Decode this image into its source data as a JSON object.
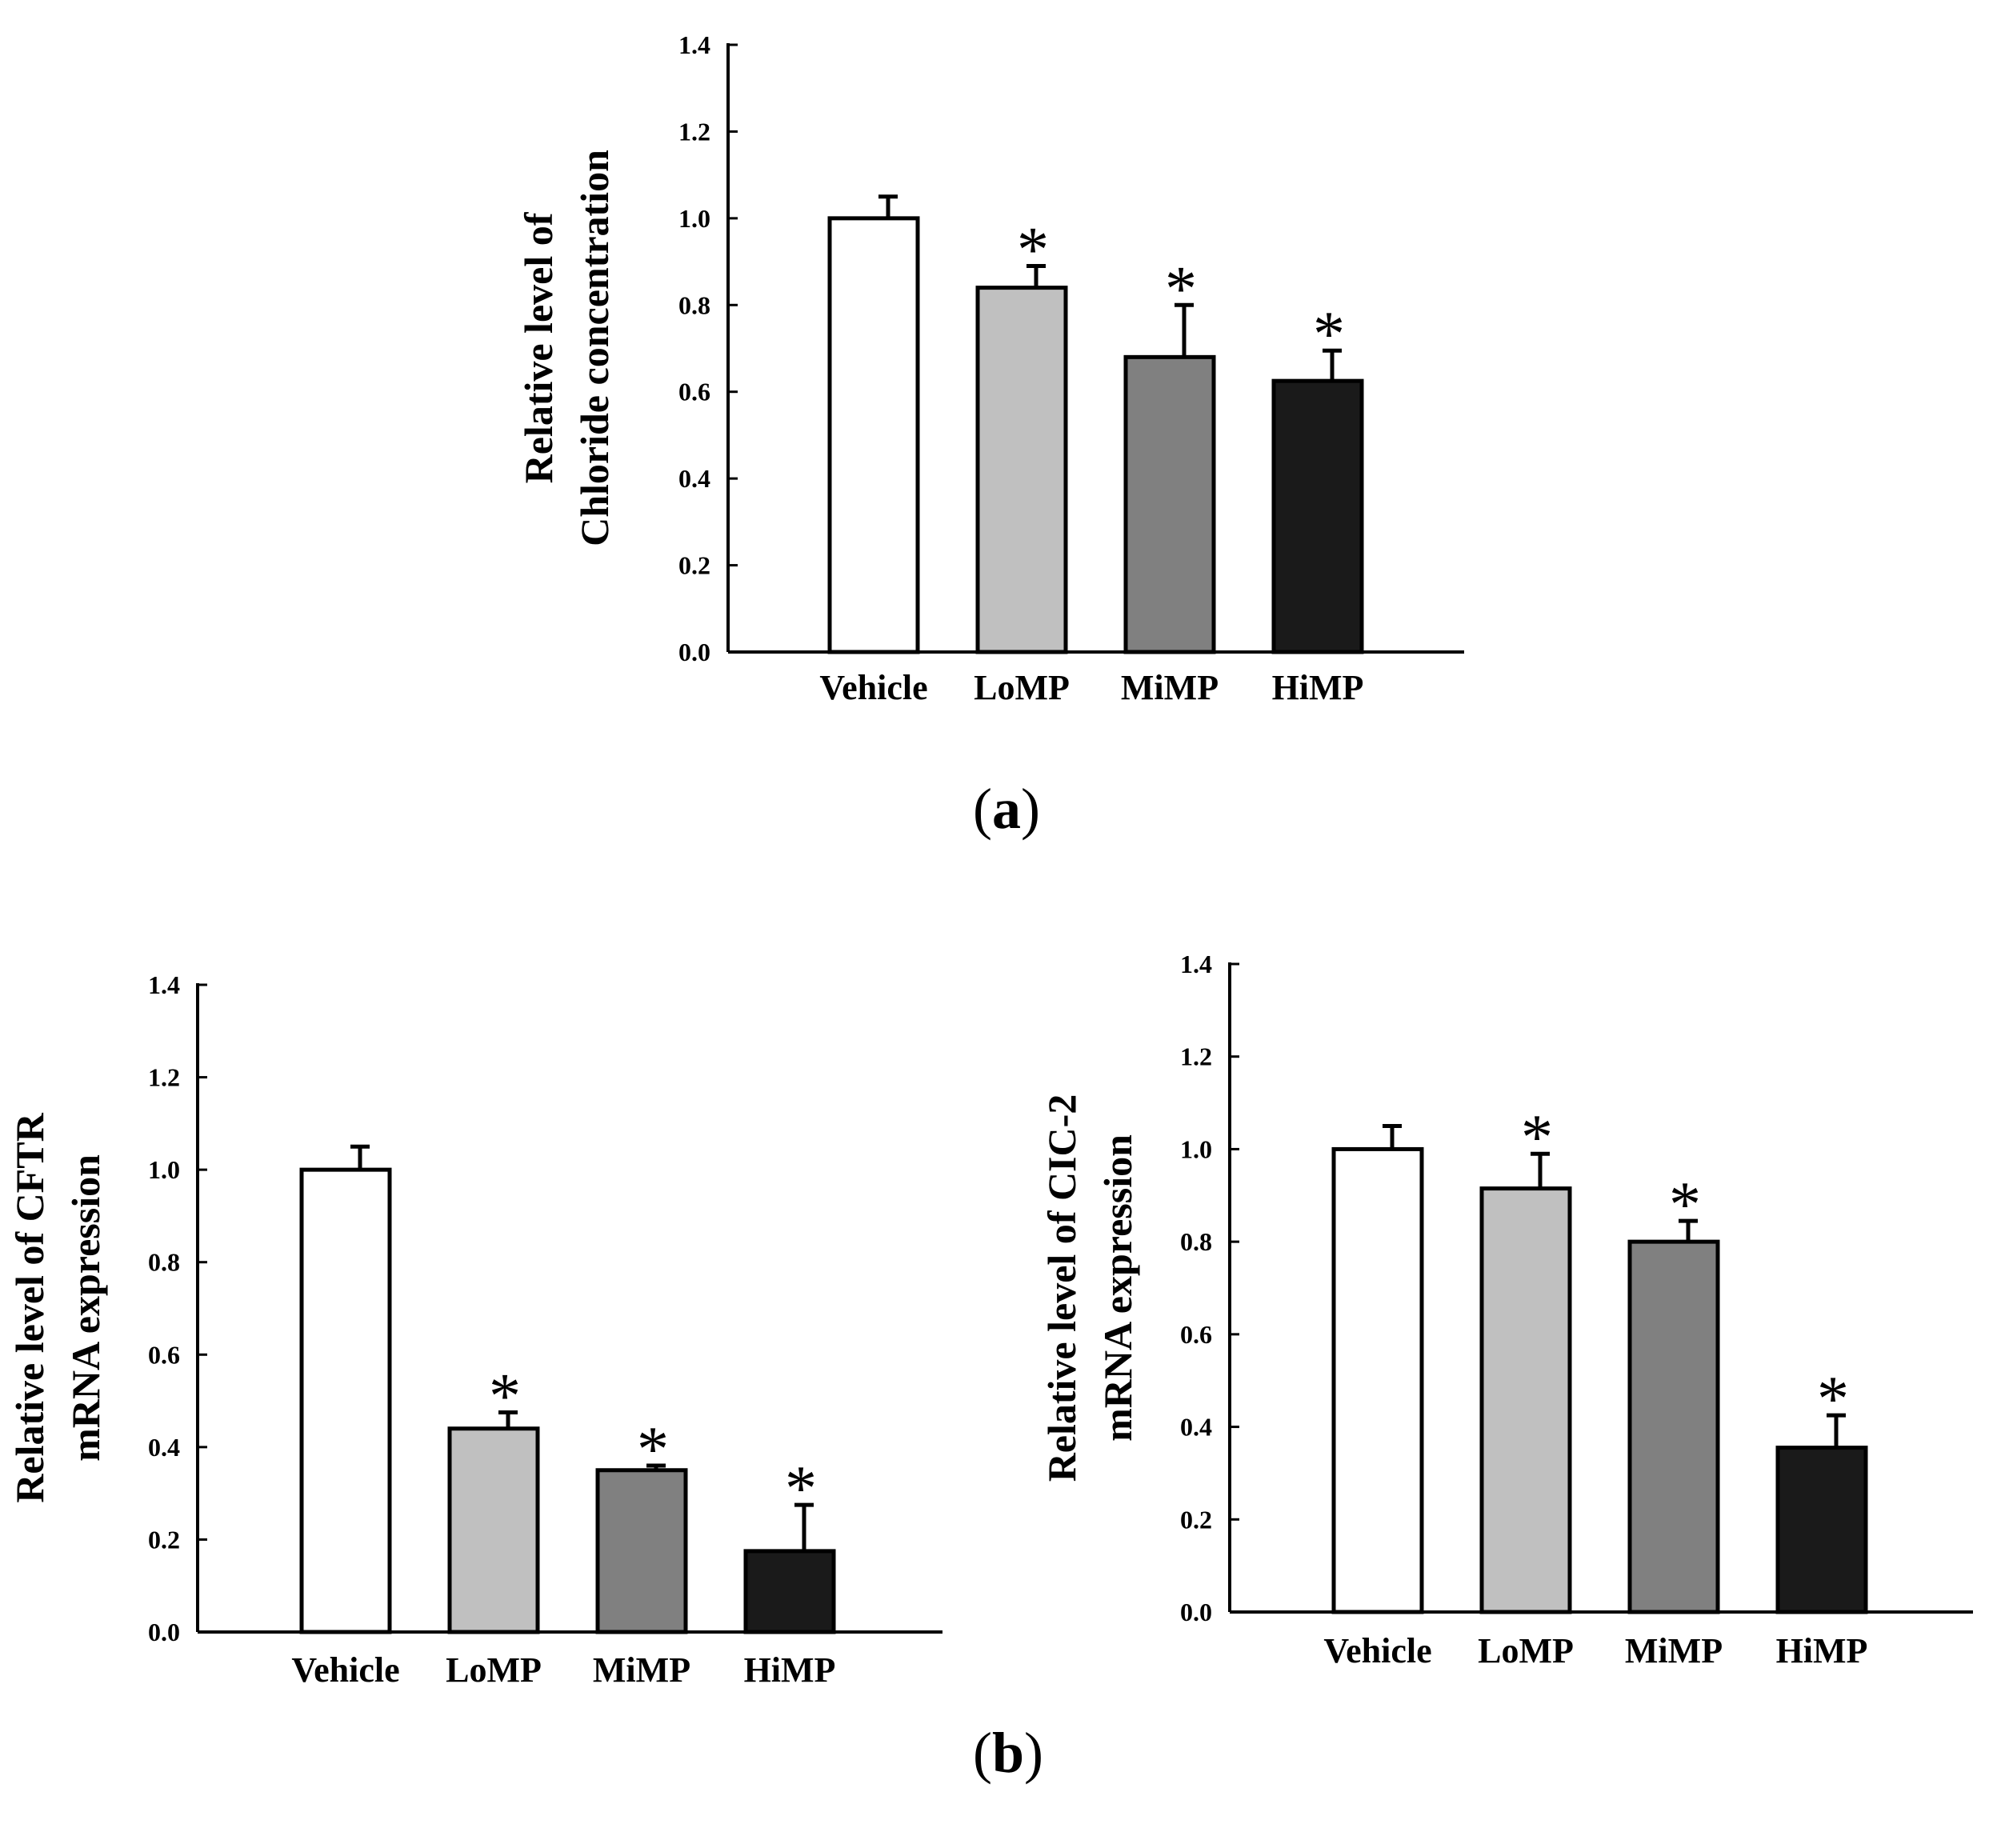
{
  "figure": {
    "panel_labels": [
      "a",
      "b"
    ]
  },
  "chart_data": [
    {
      "id": "chart-a",
      "type": "bar",
      "title": "",
      "ylabel_lines": [
        "Relative level of",
        "Chloride  concentration"
      ],
      "xlabel": "",
      "categories": [
        "Vehicle",
        "LoMP",
        "MiMP",
        "HiMP"
      ],
      "values": [
        1.0,
        0.84,
        0.68,
        0.625
      ],
      "errors": [
        0.05,
        0.05,
        0.12,
        0.07
      ],
      "significance": [
        "",
        "*",
        "*",
        "*"
      ],
      "bar_colors": [
        "#ffffff",
        "#c0c0c0",
        "#808080",
        "#1a1a1a"
      ],
      "ylim": [
        0,
        1.4
      ],
      "yticks": [
        "0.0",
        "0.2",
        "0.4",
        "0.6",
        "0.8",
        "1.0",
        "1.2",
        "1.4"
      ],
      "grid": false
    },
    {
      "id": "chart-b1",
      "type": "bar",
      "title": "",
      "ylabel_lines": [
        "Relative level of  CFTR",
        "mRNA expression"
      ],
      "xlabel": "",
      "categories": [
        "Vehicle",
        "LoMP",
        "MiMP",
        "HiMP"
      ],
      "values": [
        1.0,
        0.44,
        0.35,
        0.175
      ],
      "errors": [
        0.05,
        0.035,
        0.01,
        0.1
      ],
      "significance": [
        "",
        "*",
        "*",
        "*"
      ],
      "bar_colors": [
        "#ffffff",
        "#c0c0c0",
        "#808080",
        "#1a1a1a"
      ],
      "ylim": [
        0,
        1.4
      ],
      "yticks": [
        "0.0",
        "0.2",
        "0.4",
        "0.6",
        "0.8",
        "1.0",
        "1.2",
        "1.4"
      ],
      "grid": false
    },
    {
      "id": "chart-b2",
      "type": "bar",
      "title": "",
      "ylabel_lines": [
        "Relative level of  CIC-2",
        "mRNA expression"
      ],
      "xlabel": "",
      "categories": [
        "Vehicle",
        "LoMP",
        "MiMP",
        "HiMP"
      ],
      "values": [
        1.0,
        0.915,
        0.8,
        0.355
      ],
      "errors": [
        0.05,
        0.075,
        0.045,
        0.07
      ],
      "significance": [
        "",
        "*",
        "*",
        "*"
      ],
      "bar_colors": [
        "#ffffff",
        "#c0c0c0",
        "#808080",
        "#1a1a1a"
      ],
      "ylim": [
        0,
        1.4
      ],
      "yticks": [
        "0.0",
        "0.2",
        "0.4",
        "0.6",
        "0.8",
        "1.0",
        "1.2",
        "1.4"
      ],
      "grid": false
    }
  ]
}
